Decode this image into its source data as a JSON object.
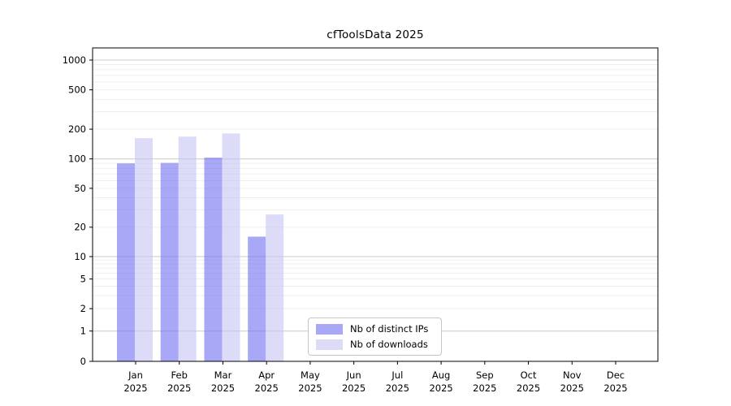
{
  "chart_data": {
    "type": "bar",
    "title": "cfToolsData 2025",
    "categories": [
      "Jan",
      "Feb",
      "Mar",
      "Apr",
      "May",
      "Jun",
      "Jul",
      "Aug",
      "Sep",
      "Oct",
      "Nov",
      "Dec"
    ],
    "year_label": "2025",
    "series": [
      {
        "name": "Nb of distinct IPs",
        "color": "#6e6ef0",
        "opacity": 0.6,
        "values": [
          90,
          91,
          103,
          16,
          null,
          null,
          null,
          null,
          null,
          null,
          null,
          null
        ]
      },
      {
        "name": "Nb of downloads",
        "color": "#c5c5f3",
        "opacity": 0.6,
        "values": [
          162,
          168,
          181,
          27,
          null,
          null,
          null,
          null,
          null,
          null,
          null,
          null
        ]
      }
    ],
    "yticks": [
      0,
      1,
      2,
      5,
      10,
      20,
      50,
      100,
      200,
      500,
      1000
    ],
    "ylim": [
      0,
      1300
    ],
    "xlabel": "",
    "ylabel": "",
    "scale": "log above 1, linear 0-1",
    "grid": {
      "major_color": "#c9c9c9",
      "minor_color": "#ededed"
    },
    "frame_color": "#000000",
    "legend_position": "inside lower-center-left"
  }
}
